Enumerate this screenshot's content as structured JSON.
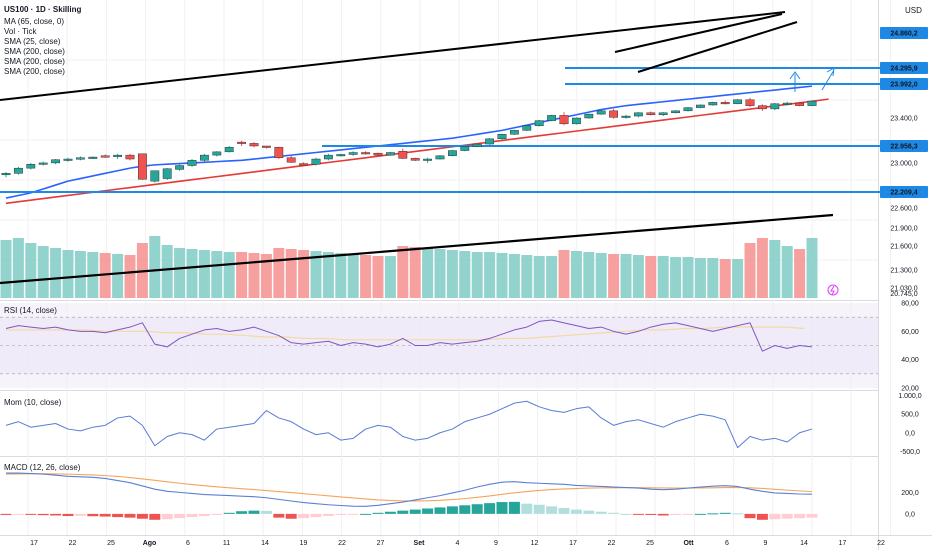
{
  "header": {
    "symbol": "US100 · 1D · Skilling",
    "currency": "USD",
    "indicators": [
      "MA (65, close, 0)",
      "Vol · Tick",
      "SMA (25, close)",
      "SMA (200, close)",
      "SMA (200, close)",
      "SMA (200, close)"
    ]
  },
  "chart_data": [
    {
      "type": "candlestick",
      "name": "US100 · 1D · Skilling",
      "ylim": [
        20745,
        25200
      ],
      "price_labels": [
        "24.860,2",
        "24.295,9",
        "23.992,0",
        "22.956,3",
        "22.209,4"
      ],
      "price_ticks": [
        "23.400,0",
        "23.000,0",
        "22.600,0",
        "21.900,0",
        "21.600,0",
        "21.300,0",
        "21.030,0",
        "20.745,0"
      ],
      "dates": [
        "17",
        "22",
        "25",
        "Ago",
        "6",
        "11",
        "14",
        "19",
        "22",
        "27",
        "Set",
        "4",
        "9",
        "12",
        "17",
        "22",
        "25",
        "Ott",
        "6",
        "9",
        "14",
        "17",
        "22"
      ],
      "levels": [
        24295.9,
        23992.0,
        22956.3,
        22209.4
      ],
      "candles": [
        [
          22640,
          22680,
          22600,
          22660
        ],
        [
          22660,
          22760,
          22640,
          22740
        ],
        [
          22740,
          22820,
          22720,
          22800
        ],
        [
          22800,
          22840,
          22780,
          22820
        ],
        [
          22820,
          22880,
          22800,
          22870
        ],
        [
          22870,
          22900,
          22840,
          22880
        ],
        [
          22880,
          22920,
          22860,
          22900
        ],
        [
          22900,
          22920,
          22880,
          22910
        ],
        [
          22930,
          22950,
          22900,
          22920
        ],
        [
          22920,
          22960,
          22880,
          22940
        ],
        [
          22940,
          22960,
          22860,
          22880
        ],
        [
          22960,
          22960,
          22560,
          22570
        ],
        [
          22540,
          22700,
          22520,
          22700
        ],
        [
          22580,
          22740,
          22560,
          22730
        ],
        [
          22720,
          22800,
          22700,
          22780
        ],
        [
          22780,
          22880,
          22760,
          22860
        ],
        [
          22860,
          22960,
          22840,
          22940
        ],
        [
          22940,
          23000,
          22920,
          22990
        ],
        [
          22990,
          23080,
          22980,
          23060
        ],
        [
          23140,
          23160,
          23080,
          23120
        ],
        [
          23120,
          23140,
          23060,
          23080
        ],
        [
          23080,
          23080,
          23040,
          23060
        ],
        [
          23060,
          23070,
          22880,
          22900
        ],
        [
          22900,
          22930,
          22820,
          22830
        ],
        [
          22810,
          22830,
          22780,
          22800
        ],
        [
          22800,
          22900,
          22780,
          22880
        ],
        [
          22880,
          22960,
          22860,
          22940
        ],
        [
          22940,
          22960,
          22920,
          22950
        ],
        [
          22950,
          23000,
          22930,
          22980
        ],
        [
          22980,
          23000,
          22950,
          22970
        ],
        [
          22970,
          22980,
          22920,
          22940
        ],
        [
          22940,
          22990,
          22930,
          22980
        ],
        [
          23000,
          23040,
          22880,
          22890
        ],
        [
          22890,
          22900,
          22850,
          22860
        ],
        [
          22860,
          22900,
          22820,
          22880
        ],
        [
          22880,
          22940,
          22870,
          22930
        ],
        [
          22930,
          23020,
          22920,
          23010
        ],
        [
          23010,
          23080,
          23000,
          23070
        ],
        [
          23070,
          23120,
          23060,
          23110
        ],
        [
          23110,
          23200,
          23100,
          23190
        ],
        [
          23190,
          23270,
          23180,
          23260
        ],
        [
          23260,
          23330,
          23250,
          23320
        ],
        [
          23320,
          23400,
          23310,
          23390
        ],
        [
          23390,
          23480,
          23380,
          23470
        ],
        [
          23470,
          23560,
          23460,
          23550
        ],
        [
          23550,
          23600,
          23400,
          23420
        ],
        [
          23420,
          23520,
          23410,
          23510
        ],
        [
          23510,
          23580,
          23500,
          23570
        ],
        [
          23570,
          23630,
          23560,
          23620
        ],
        [
          23620,
          23650,
          23500,
          23520
        ],
        [
          23520,
          23560,
          23500,
          23540
        ],
        [
          23540,
          23600,
          23520,
          23590
        ],
        [
          23590,
          23610,
          23550,
          23560
        ],
        [
          23560,
          23600,
          23540,
          23590
        ],
        [
          23590,
          23630,
          23580,
          23620
        ],
        [
          23620,
          23680,
          23610,
          23670
        ],
        [
          23670,
          23720,
          23660,
          23710
        ],
        [
          23710,
          23760,
          23700,
          23750
        ],
        [
          23750,
          23780,
          23720,
          23730
        ],
        [
          23730,
          23800,
          23720,
          23790
        ],
        [
          23790,
          23820,
          23680,
          23700
        ],
        [
          23700,
          23720,
          23620,
          23650
        ],
        [
          23650,
          23740,
          23630,
          23730
        ],
        [
          23730,
          23760,
          23700,
          23740
        ],
        [
          23740,
          23760,
          23690,
          23700
        ],
        [
          23700,
          23780,
          23690,
          23770
        ]
      ],
      "ma65": [
        22200,
        22240,
        22280,
        22320,
        22360,
        22400,
        22440,
        22480,
        22520,
        22560,
        22600,
        22640,
        22680,
        22720,
        22760,
        22800,
        22840,
        22880,
        22920,
        22960,
        23000,
        23040,
        23080,
        23120,
        23160,
        23200,
        23240,
        23280,
        23320,
        23360,
        23400,
        23440,
        23480,
        23520,
        23560,
        23600,
        23640,
        23680,
        23720,
        23760,
        23800
      ],
      "sma25": [
        22280,
        22320,
        22360,
        22420,
        22480,
        22540,
        22580,
        22620,
        22660,
        22700,
        22740,
        22770,
        22790,
        22800,
        22810,
        22820,
        22830,
        22840,
        22850,
        22860,
        22880,
        22900,
        22920,
        22940,
        22960,
        22980,
        23000,
        23020,
        23040,
        23060,
        23080,
        23100,
        23120,
        23140,
        23160,
        23180,
        23200,
        23230,
        23260,
        23290,
        23320,
        23360,
        23400,
        23440,
        23480,
        23520,
        23560,
        23600,
        23640,
        23670,
        23700,
        23720,
        23740,
        23760,
        23780,
        23800,
        23820,
        23840,
        23860,
        23880,
        23900,
        23920,
        23940,
        23960,
        23980,
        24000
      ],
      "volume_values": [
        58,
        60,
        55,
        52,
        50,
        48,
        47,
        46,
        45,
        44,
        43,
        55,
        62,
        53,
        50,
        49,
        48,
        47,
        46,
        46,
        45,
        44,
        50,
        49,
        48,
        47,
        46,
        45,
        44,
        43,
        42,
        42,
        52,
        51,
        50,
        49,
        48,
        47,
        46,
        46,
        45,
        44,
        43,
        42,
        42,
        48,
        47,
        46,
        45,
        44,
        44,
        43,
        42,
        42,
        41,
        41,
        40,
        40,
        39,
        39,
        55,
        60,
        58,
        52,
        49,
        60
      ],
      "volume_series_line": {
        "from": 20,
        "to": 74
      }
    },
    {
      "type": "line",
      "name": "RSI (14, close)",
      "ylim": [
        20,
        80
      ],
      "ticks": [
        "80,00",
        "60,00",
        "40,00",
        "20,00"
      ],
      "bands": [
        70,
        30
      ],
      "values": [
        62,
        64,
        63,
        62,
        63,
        61,
        60,
        60,
        59,
        61,
        63,
        66,
        51,
        49,
        55,
        58,
        61,
        62,
        60,
        61,
        63,
        60,
        57,
        52,
        51,
        52,
        53,
        50,
        52,
        51,
        49,
        51,
        55,
        50,
        50,
        52,
        51,
        52,
        53,
        55,
        58,
        61,
        63,
        67,
        68,
        66,
        64,
        62,
        63,
        60,
        58,
        60,
        63,
        65,
        66,
        64,
        62,
        60,
        62,
        64,
        66,
        46,
        50,
        48,
        50,
        49
      ],
      "ma": [
        61,
        61,
        61,
        61,
        61,
        60,
        60,
        60,
        59,
        59,
        58,
        58,
        57,
        56,
        56,
        55,
        55,
        54,
        54,
        54,
        54,
        54,
        54,
        54,
        54,
        55,
        55,
        56,
        57,
        58,
        59,
        60,
        61,
        61,
        62,
        62,
        63,
        63,
        63,
        63,
        62
      ]
    },
    {
      "type": "line",
      "name": "Mom (10, close)",
      "ylim": [
        -600,
        1100
      ],
      "ticks": [
        "1.000,0",
        "500,0",
        "0,0",
        "-500,0"
      ],
      "values": [
        200,
        300,
        150,
        200,
        250,
        100,
        50,
        150,
        200,
        400,
        450,
        200,
        -350,
        -100,
        0,
        -50,
        -200,
        100,
        150,
        200,
        250,
        600,
        400,
        300,
        100,
        -50,
        0,
        -200,
        -150,
        100,
        200,
        150,
        -100,
        -200,
        -150,
        0,
        100,
        300,
        400,
        500,
        650,
        800,
        850,
        700,
        600,
        550,
        650,
        700,
        400,
        200,
        300,
        350,
        250,
        150,
        300,
        400,
        500,
        450,
        350,
        -400,
        -100,
        -200,
        -150,
        -250,
        0,
        100
      ]
    },
    {
      "type": "line",
      "name": "MACD (12, 26, close)",
      "ylim": [
        -150,
        520
      ],
      "ticks": [
        "200,0",
        "0,0"
      ],
      "macd": [
        380,
        380,
        375,
        370,
        360,
        350,
        345,
        340,
        330,
        310,
        290,
        260,
        230,
        210,
        200,
        190,
        180,
        175,
        170,
        165,
        160,
        150,
        135,
        120,
        105,
        95,
        85,
        78,
        72,
        70,
        80,
        95,
        110,
        130,
        150,
        170,
        195,
        220,
        250,
        275,
        295,
        300,
        290,
        285,
        280,
        275,
        265,
        260,
        255,
        250,
        245,
        240,
        230,
        225,
        230,
        240,
        250,
        258,
        262,
        255,
        230,
        210,
        195,
        190,
        185,
        183
      ],
      "signal": [
        370,
        372,
        374,
        374,
        372,
        370,
        366,
        362,
        356,
        348,
        338,
        325,
        312,
        298,
        285,
        273,
        262,
        252,
        243,
        234,
        226,
        217,
        208,
        198,
        188,
        178,
        168,
        158,
        148,
        139,
        130,
        125,
        121,
        120,
        122,
        126,
        133,
        142,
        154,
        167,
        182,
        196,
        208,
        218,
        226,
        232,
        236,
        240,
        242,
        243,
        244,
        244,
        243,
        241,
        240,
        240,
        241,
        243,
        245,
        246,
        243,
        237,
        229,
        221,
        214,
        207
      ],
      "histogram": [
        -10,
        -5,
        -8,
        -12,
        -15,
        -20,
        -18,
        -22,
        -25,
        -30,
        -35,
        -45,
        -55,
        -50,
        -40,
        -30,
        -20,
        -10,
        10,
        25,
        30,
        28,
        -35,
        -45,
        -40,
        -30,
        -20,
        -10,
        -5,
        0,
        10,
        20,
        30,
        40,
        50,
        60,
        70,
        80,
        90,
        100,
        110,
        112,
        95,
        85,
        70,
        55,
        40,
        30,
        20,
        10,
        0,
        -5,
        -10,
        -15,
        -10,
        -5,
        0,
        5,
        10,
        5,
        -40,
        -55,
        -50,
        -45,
        -40,
        -35
      ]
    }
  ],
  "price_axis": {
    "badges": [
      {
        "label": "24.860,2",
        "color": "#1e88e5"
      },
      {
        "label": "24.295,9",
        "color": "#1e88e5"
      },
      {
        "label": "23.992,0",
        "color": "#1e88e5"
      },
      {
        "label": "22.956,3",
        "color": "#1e88e5"
      },
      {
        "label": "22.209,4",
        "color": "#1e88e5"
      }
    ]
  },
  "colors": {
    "up": "#26a69a",
    "down": "#ef5350",
    "volUp": "#80cbc4",
    "volDown": "#f48f8f",
    "sma25": "#2962ff",
    "sma200": "#e53935",
    "level": "#1e88e5",
    "rsi": "#7e57c2",
    "rsiMA": "#f5d9a1",
    "mom": "#5a7bd6",
    "macd": "#5b7fd4",
    "signal": "#f5a55a"
  }
}
